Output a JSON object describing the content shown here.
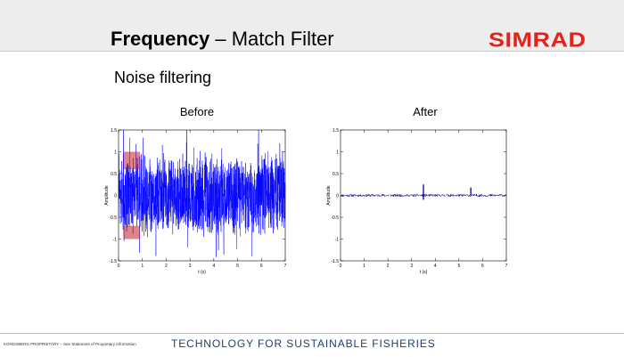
{
  "header": {
    "title_bold": "Frequency",
    "title_rest": " – Match Filter",
    "logo_text": "SIMRAD",
    "logo_color": "#e3221b"
  },
  "section_heading": "Noise filtering",
  "panels": {
    "before_label": "Before",
    "after_label": "After"
  },
  "footer": {
    "left": "KONGSBERG PROPRIETARY – See Statement of Proprietary Information",
    "tagline": "TECHNOLOGY FOR SUSTAINABLE FISHERIES",
    "tagline_color": "#1f3f73"
  },
  "chart_data": [
    {
      "type": "line",
      "title": "Before",
      "xlabel": "t (s)",
      "ylabel": "Amplitude",
      "xlim": [
        0,
        7
      ],
      "ylim": [
        -1.5,
        1.5
      ],
      "x_ticks": [
        "0",
        "1",
        "2",
        "3",
        "4",
        "5",
        "6",
        "7"
      ],
      "y_ticks": [
        "1.5",
        "1",
        "0.5",
        "0",
        "-0.5",
        "-1",
        "-1.5"
      ],
      "series": [
        {
          "color": "#0000ff",
          "signal": "dense random noise filling approx -1.5 to 1.5 over 0–7 s"
        }
      ],
      "highlight_color": "#c0202a",
      "highlights": [
        {
          "x": [
            0.2,
            0.9
          ],
          "y": [
            0.6,
            1.0
          ]
        },
        {
          "x": [
            0.2,
            0.9
          ],
          "y": [
            -1.0,
            -0.7
          ]
        }
      ]
    },
    {
      "type": "line",
      "title": "After",
      "xlabel": "t (s)",
      "ylabel": "Amplitude",
      "xlim": [
        0,
        7
      ],
      "ylim": [
        -1.5,
        1.5
      ],
      "x_ticks": [
        "0",
        "1",
        "2",
        "3",
        "4",
        "5",
        "6",
        "7"
      ],
      "y_ticks": [
        "1.5",
        "1",
        "0.5",
        "0",
        "-0.5",
        "-1",
        "-1.5"
      ],
      "series": [
        {
          "color": "#00008b",
          "baseline": 0,
          "noise_amplitude": 0.03
        }
      ],
      "peaks": [
        {
          "x": 3.5,
          "y": 0.25,
          "y_min": -0.1
        },
        {
          "x": 5.5,
          "y": 0.18,
          "y_min": 0.0
        }
      ]
    }
  ]
}
